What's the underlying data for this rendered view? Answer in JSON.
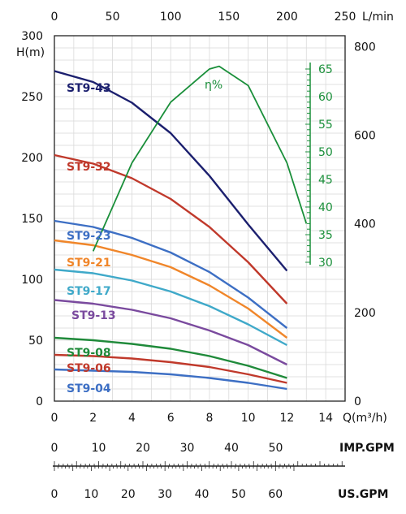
{
  "chart_data": {
    "type": "line",
    "title": "",
    "xlabel": "Q(m³/h)",
    "ylabel": "H(m)",
    "xlim": [
      0,
      15
    ],
    "ylim": [
      0,
      300
    ],
    "x_ticks": [
      "0",
      "2",
      "4",
      "6",
      "8",
      "10",
      "12",
      "14"
    ],
    "y_ticks": [
      "0",
      "50",
      "100",
      "150",
      "200",
      "250",
      "300"
    ],
    "grid": true,
    "top_axis": {
      "label": "L/min",
      "ticks": [
        "0",
        "50",
        "100",
        "150",
        "200",
        "250"
      ]
    },
    "right_axis": {
      "ticks": [
        "0",
        "200",
        "400",
        "600",
        "800"
      ]
    },
    "efficiency_axis": {
      "label": "η%",
      "ticks": [
        "30",
        "35",
        "40",
        "45",
        "50",
        "55",
        "60",
        "65"
      ],
      "color": "#1a8f3a"
    },
    "imp_gpm_axis": {
      "label": "IMP.GPM",
      "ticks": [
        "0",
        "10",
        "20",
        "30",
        "40",
        "50"
      ]
    },
    "us_gpm_axis": {
      "label": "US.GPM",
      "ticks": [
        "0",
        "10",
        "20",
        "30",
        "40",
        "50",
        "60"
      ]
    },
    "series": [
      {
        "name": "ST9-43",
        "color": "#1b1f6e",
        "x": [
          0,
          2,
          4,
          6,
          8,
          10,
          12
        ],
        "values": [
          271,
          262,
          245,
          220,
          185,
          145,
          107
        ]
      },
      {
        "name": "ST9-32",
        "color": "#c0392b",
        "x": [
          0,
          2,
          4,
          6,
          8,
          10,
          12
        ],
        "values": [
          202,
          195,
          183,
          166,
          143,
          114,
          80
        ]
      },
      {
        "name": "ST9-23",
        "color": "#3d6fc4",
        "x": [
          0,
          2,
          4,
          6,
          8,
          10,
          12
        ],
        "values": [
          148,
          143,
          134,
          122,
          106,
          85,
          60
        ]
      },
      {
        "name": "ST9-21",
        "color": "#f0862a",
        "x": [
          0,
          2,
          4,
          6,
          8,
          10,
          12
        ],
        "values": [
          132,
          128,
          120,
          110,
          95,
          76,
          52
        ]
      },
      {
        "name": "ST9-17",
        "color": "#3fa9c9",
        "x": [
          0,
          2,
          4,
          6,
          8,
          10,
          12
        ],
        "values": [
          108,
          105,
          99,
          90,
          78,
          63,
          46
        ]
      },
      {
        "name": "ST9-13",
        "color": "#7a4a9e",
        "x": [
          0,
          2,
          4,
          6,
          8,
          10,
          12
        ],
        "values": [
          83,
          80,
          75,
          68,
          58,
          46,
          30
        ]
      },
      {
        "name": "ST9-08",
        "color": "#1f8a3a",
        "x": [
          0,
          2,
          4,
          6,
          8,
          10,
          12
        ],
        "values": [
          52,
          50,
          47,
          43,
          37,
          29,
          19
        ]
      },
      {
        "name": "ST9-06",
        "color": "#c0392b",
        "x": [
          0,
          2,
          4,
          6,
          8,
          10,
          12
        ],
        "values": [
          38,
          37,
          35,
          32,
          28,
          22,
          15
        ]
      },
      {
        "name": "ST9-04",
        "color": "#3d6fc4",
        "x": [
          0,
          2,
          4,
          6,
          8,
          10,
          12
        ],
        "values": [
          26,
          25,
          24,
          22,
          19,
          15,
          10
        ]
      }
    ],
    "efficiency": {
      "x": [
        2,
        4,
        6,
        8,
        8.5,
        10,
        12,
        13
      ],
      "values": [
        32,
        48,
        59,
        65,
        65.5,
        62,
        48,
        37
      ]
    }
  }
}
